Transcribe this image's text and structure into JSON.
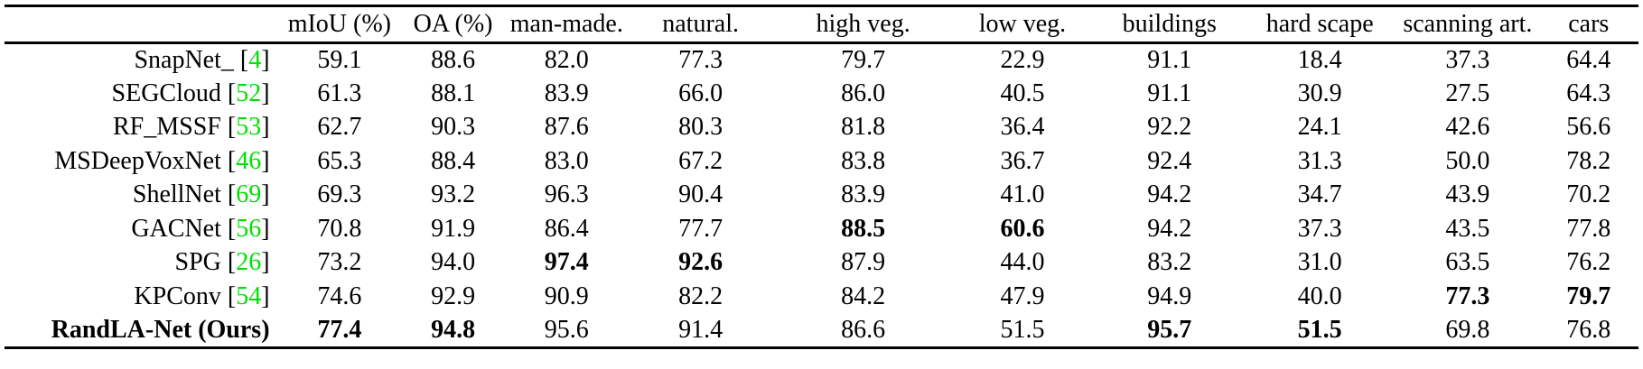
{
  "colors": {
    "citation_green": "#00e000",
    "text": "#000000",
    "rule": "#000000",
    "background": "#ffffff"
  },
  "table": {
    "columns": [
      "",
      "mIoU (%)",
      "OA (%)",
      "man-made.",
      "natural.",
      "high veg.",
      "low veg.",
      "buildings",
      "hard scape",
      "scanning art.",
      "cars"
    ],
    "citation_bracket_open": "[",
    "citation_bracket_close": "]",
    "rows": [
      {
        "method": "SnapNet_",
        "cite": "4",
        "bold_method": false,
        "values": [
          "59.1",
          "88.6",
          "82.0",
          "77.3",
          "79.7",
          "22.9",
          "91.1",
          "18.4",
          "37.3",
          "64.4"
        ],
        "bold": []
      },
      {
        "method": "SEGCloud",
        "cite": "52",
        "bold_method": false,
        "values": [
          "61.3",
          "88.1",
          "83.9",
          "66.0",
          "86.0",
          "40.5",
          "91.1",
          "30.9",
          "27.5",
          "64.3"
        ],
        "bold": []
      },
      {
        "method": "RF_MSSF",
        "cite": "53",
        "bold_method": false,
        "values": [
          "62.7",
          "90.3",
          "87.6",
          "80.3",
          "81.8",
          "36.4",
          "92.2",
          "24.1",
          "42.6",
          "56.6"
        ],
        "bold": []
      },
      {
        "method": "MSDeepVoxNet",
        "cite": "46",
        "bold_method": false,
        "values": [
          "65.3",
          "88.4",
          "83.0",
          "67.2",
          "83.8",
          "36.7",
          "92.4",
          "31.3",
          "50.0",
          "78.2"
        ],
        "bold": []
      },
      {
        "method": "ShellNet",
        "cite": "69",
        "bold_method": false,
        "values": [
          "69.3",
          "93.2",
          "96.3",
          "90.4",
          "83.9",
          "41.0",
          "94.2",
          "34.7",
          "43.9",
          "70.2"
        ],
        "bold": []
      },
      {
        "method": "GACNet",
        "cite": "56",
        "bold_method": false,
        "values": [
          "70.8",
          "91.9",
          "86.4",
          "77.7",
          "88.5",
          "60.6",
          "94.2",
          "37.3",
          "43.5",
          "77.8"
        ],
        "bold": [
          4,
          5
        ]
      },
      {
        "method": "SPG",
        "cite": "26",
        "bold_method": false,
        "values": [
          "73.2",
          "94.0",
          "97.4",
          "92.6",
          "87.9",
          "44.0",
          "83.2",
          "31.0",
          "63.5",
          "76.2"
        ],
        "bold": [
          2,
          3
        ]
      },
      {
        "method": "KPConv",
        "cite": "54",
        "bold_method": false,
        "values": [
          "74.6",
          "92.9",
          "90.9",
          "82.2",
          "84.2",
          "47.9",
          "94.9",
          "40.0",
          "77.3",
          "79.7"
        ],
        "bold": [
          8,
          9
        ]
      },
      {
        "method": "RandLA-Net (Ours)",
        "cite": null,
        "bold_method": true,
        "values": [
          "77.4",
          "94.8",
          "95.6",
          "91.4",
          "86.6",
          "51.5",
          "95.7",
          "51.5",
          "69.8",
          "76.8"
        ],
        "bold": [
          0,
          1,
          6,
          7
        ]
      }
    ]
  }
}
